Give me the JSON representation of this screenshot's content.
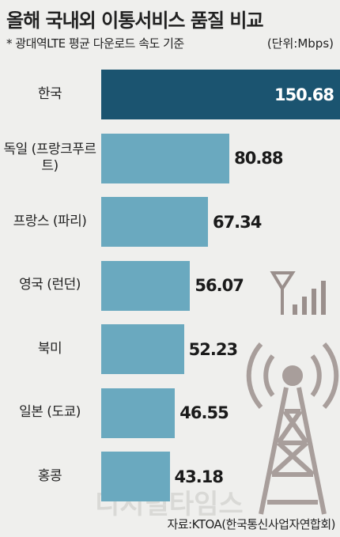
{
  "chart_data": {
    "type": "bar",
    "orientation": "horizontal",
    "title": "올해 국내외 이통서비스 품질 비교",
    "subtitle": "* 광대역LTE 평균 다운로드 속도 기준",
    "unit": "(단위:Mbps)",
    "source": "자료:KTOA(한국통신사업자연합회)",
    "watermark": "디지털타임스",
    "categories": [
      "한국",
      "독일 (프랑크푸르트)",
      "프랑스 (파리)",
      "영국 (런던)",
      "북미",
      "일본 (도쿄)",
      "홍콩"
    ],
    "values": [
      150.68,
      80.88,
      67.34,
      56.07,
      52.23,
      46.55,
      43.18
    ],
    "colors": [
      "#1b5470",
      "#6aa9bf",
      "#6aa9bf",
      "#6aa9bf",
      "#6aa9bf",
      "#6aa9bf",
      "#6aa9bf"
    ]
  }
}
